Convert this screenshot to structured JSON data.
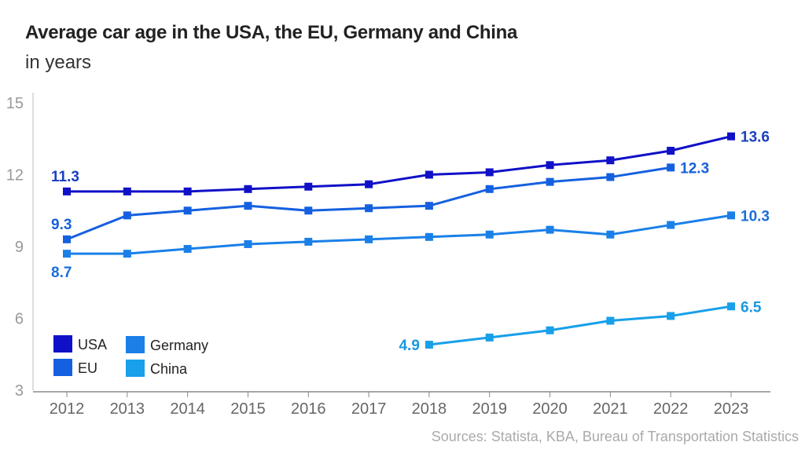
{
  "chart_data": {
    "type": "line",
    "title": "Average car age in the USA, the EU, Germany and China",
    "subtitle": "in years",
    "source": "Sources: Statista, KBA, Bureau of Transportation Statistics",
    "x": [
      2012,
      2013,
      2014,
      2015,
      2016,
      2017,
      2018,
      2019,
      2020,
      2021,
      2022,
      2023
    ],
    "ylim": [
      3,
      15
    ],
    "yticks": [
      3,
      6,
      9,
      12,
      15
    ],
    "grid": false,
    "legend_position": "bottom-left",
    "series": [
      {
        "name": "USA",
        "color": "#1010c8",
        "label_color": "#1a3fc0",
        "values": [
          11.3,
          11.3,
          11.3,
          11.4,
          11.5,
          11.6,
          12.0,
          12.1,
          12.4,
          12.6,
          13.0,
          13.6
        ],
        "labels": {
          "2012": "11.3",
          "2023": "13.6"
        }
      },
      {
        "name": "EU",
        "color": "#1560e0",
        "label_color": "#1560d8",
        "values": [
          9.3,
          10.3,
          10.5,
          10.7,
          10.5,
          10.6,
          10.7,
          11.4,
          11.7,
          11.9,
          12.3,
          null
        ],
        "labels": {
          "2012": "9.3",
          "2022": "12.3"
        }
      },
      {
        "name": "Germany",
        "color": "#1a80e8",
        "label_color": "#1a6ed8",
        "values": [
          8.7,
          8.7,
          8.9,
          9.1,
          9.2,
          9.3,
          9.4,
          9.5,
          9.7,
          9.5,
          9.9,
          10.3
        ],
        "labels": {
          "2012": "8.7",
          "2023": "10.3"
        }
      },
      {
        "name": "China",
        "color": "#18a0ea",
        "label_color": "#1898e0",
        "values": [
          null,
          null,
          null,
          null,
          null,
          null,
          4.9,
          5.2,
          5.5,
          5.9,
          6.1,
          6.5
        ],
        "labels": {
          "2018": "4.9",
          "2023": "6.5"
        }
      }
    ]
  }
}
